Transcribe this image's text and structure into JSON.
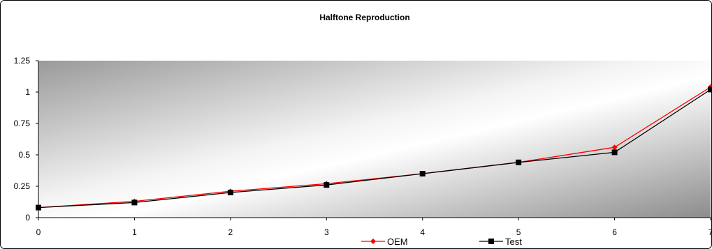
{
  "chart_data": {
    "type": "line",
    "title": "Halftone Reproduction",
    "xlabel": "",
    "ylabel": "",
    "x": [
      0,
      1,
      2,
      3,
      4,
      5,
      6,
      7
    ],
    "x_ticks": [
      "0",
      "1",
      "2",
      "3",
      "4",
      "5",
      "6",
      "7"
    ],
    "y_ticks": [
      "0",
      "0.25",
      "0.5",
      "0.75",
      "1",
      "1.25"
    ],
    "xlim": [
      0,
      7
    ],
    "ylim": [
      0,
      1.25
    ],
    "grid": false,
    "legend": "bottom-center",
    "series": [
      {
        "name": "OEM",
        "color": "#ff0000",
        "marker": "diamond",
        "values": [
          0.08,
          0.13,
          0.21,
          0.27,
          0.35,
          0.44,
          0.56,
          1.04
        ]
      },
      {
        "name": "Test",
        "color": "#000000",
        "marker": "square",
        "values": [
          0.08,
          0.12,
          0.2,
          0.26,
          0.35,
          0.44,
          0.52,
          1.02
        ]
      }
    ]
  }
}
